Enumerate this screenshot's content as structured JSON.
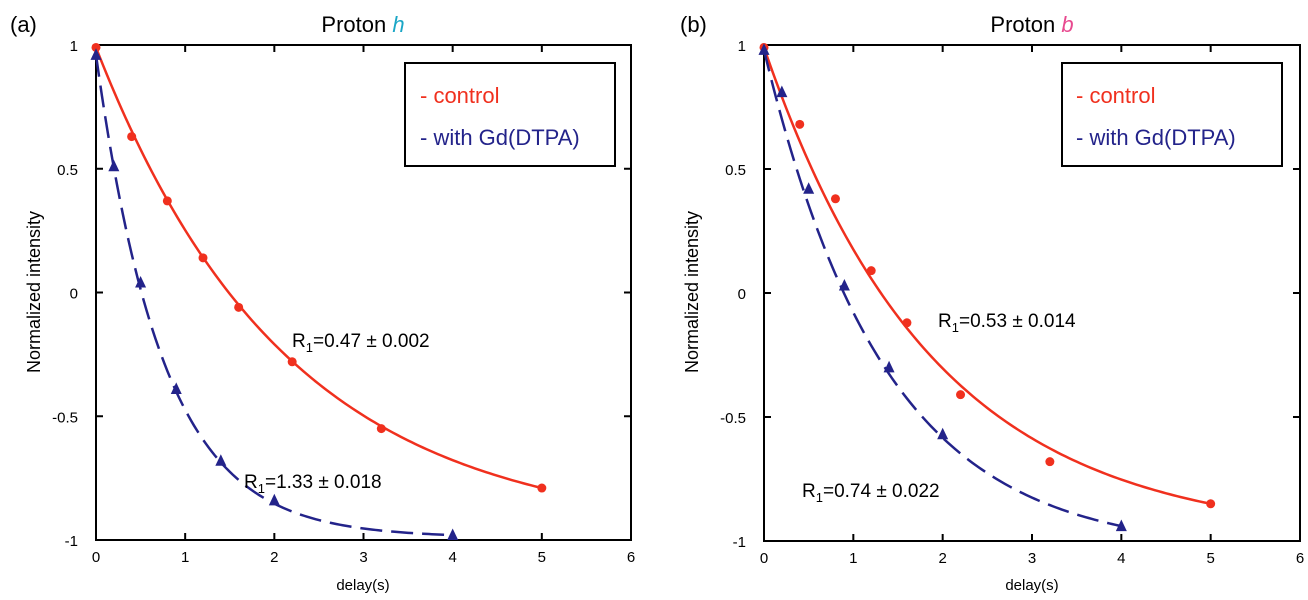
{
  "colors": {
    "control": "#f0301e",
    "gd": "#23238a",
    "title_h": "#1aa6c6",
    "title_b": "#e8498f"
  },
  "legend": {
    "control": "- control",
    "gd": "- with Gd(DTPA)"
  },
  "xlabel": "delay(s)",
  "ylabel": "Normalized intensity",
  "chart_data": [
    {
      "panel": "(a)",
      "type": "scatter",
      "title_prefix": "Proton ",
      "title_symbol": "h",
      "xlabel": "delay(s)",
      "ylabel": "Normalized intensity",
      "xlim": [
        0,
        6
      ],
      "ylim": [
        -1,
        1
      ],
      "xticks": [
        "0",
        "1",
        "2",
        "3",
        "4",
        "5",
        "6"
      ],
      "yticks": [
        "-1",
        "-0.5",
        "0",
        "0.5",
        "1"
      ],
      "series": [
        {
          "name": "control",
          "marker": "circle",
          "line": "solid",
          "x": [
            0,
            0.4,
            0.8,
            1.2,
            1.6,
            2.2,
            3.2,
            5.0
          ],
          "y": [
            0.99,
            0.63,
            0.37,
            0.14,
            -0.06,
            -0.28,
            -0.55,
            -0.79
          ],
          "fit_R1": 0.47
        },
        {
          "name": "with Gd(DTPA)",
          "marker": "triangle",
          "line": "dashed",
          "x": [
            0,
            0.2,
            0.5,
            0.9,
            1.4,
            2.0,
            4.0
          ],
          "y": [
            0.96,
            0.51,
            0.04,
            -0.39,
            -0.68,
            -0.84,
            -0.98
          ],
          "fit_R1": 1.33
        }
      ],
      "annotations": [
        {
          "prefix": "R",
          "sub": "1",
          "text": "=0.47 ± 0.002"
        },
        {
          "prefix": "R",
          "sub": "1",
          "text": "=1.33 ± 0.018"
        }
      ]
    },
    {
      "panel": "(b)",
      "type": "scatter",
      "title_prefix": "Proton ",
      "title_symbol": "b",
      "xlabel": "delay(s)",
      "ylabel": "Normalized intensity",
      "xlim": [
        0,
        6
      ],
      "ylim": [
        -1,
        1
      ],
      "xticks": [
        "0",
        "1",
        "2",
        "3",
        "4",
        "5",
        "6"
      ],
      "yticks": [
        "-1",
        "-0.5",
        "0",
        "0.5",
        "1"
      ],
      "series": [
        {
          "name": "control",
          "marker": "circle",
          "line": "solid",
          "x": [
            0,
            0.4,
            0.8,
            1.2,
            1.6,
            2.2,
            3.2,
            5.0
          ],
          "y": [
            0.99,
            0.68,
            0.38,
            0.09,
            -0.12,
            -0.41,
            -0.68,
            -0.85
          ],
          "fit_R1": 0.53
        },
        {
          "name": "with Gd(DTPA)",
          "marker": "triangle",
          "line": "dashed",
          "x": [
            0,
            0.2,
            0.5,
            0.9,
            1.4,
            2.0,
            4.0
          ],
          "y": [
            0.98,
            0.81,
            0.42,
            0.03,
            -0.3,
            -0.57,
            -0.94
          ],
          "fit_R1": 0.74
        }
      ],
      "annotations": [
        {
          "prefix": "R",
          "sub": "1",
          "text": "=0.53 ± 0.014"
        },
        {
          "prefix": "R",
          "sub": "1",
          "text": "=0.74 ± 0.022"
        }
      ]
    }
  ]
}
